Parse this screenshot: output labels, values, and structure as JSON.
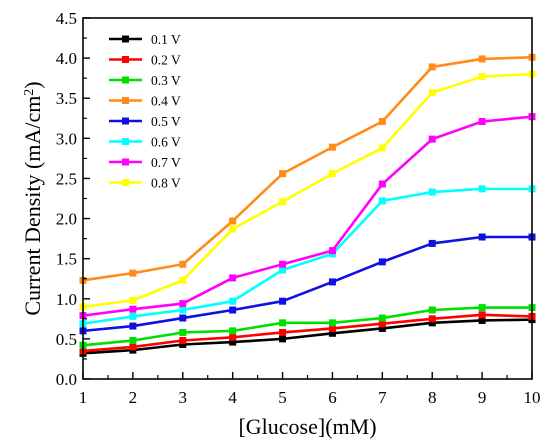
{
  "chart_data": {
    "type": "line",
    "title": "",
    "xlabel": "[Glucose](mM)",
    "ylabel_main": "Current Density (mA/cm",
    "ylabel_sup": "2",
    "ylabel_close": ")",
    "xlim": [
      1,
      10
    ],
    "ylim": [
      0.0,
      4.5
    ],
    "x_ticks": [
      "1",
      "2",
      "3",
      "4",
      "5",
      "6",
      "7",
      "8",
      "9",
      "10"
    ],
    "y_ticks": [
      "0.0",
      "0.5",
      "1.0",
      "1.5",
      "2.0",
      "2.5",
      "3.0",
      "3.5",
      "4.0",
      "4.5"
    ],
    "grid": false,
    "legend_position": "top-left",
    "x": [
      1,
      2,
      3,
      4,
      5,
      6,
      7,
      8,
      9,
      10
    ],
    "series": [
      {
        "name": "0.1 V",
        "color": "#000000",
        "values": [
          0.32,
          0.36,
          0.43,
          0.46,
          0.5,
          0.57,
          0.63,
          0.7,
          0.73,
          0.74
        ]
      },
      {
        "name": "0.2 V",
        "color": "#ff0000",
        "values": [
          0.35,
          0.4,
          0.48,
          0.52,
          0.58,
          0.63,
          0.69,
          0.75,
          0.8,
          0.78
        ]
      },
      {
        "name": "0.3 V",
        "color": "#00e000",
        "values": [
          0.42,
          0.48,
          0.58,
          0.6,
          0.7,
          0.7,
          0.76,
          0.86,
          0.89,
          0.89
        ]
      },
      {
        "name": "0.4 V",
        "color": "#ff8c1a",
        "values": [
          1.23,
          1.32,
          1.43,
          1.97,
          2.56,
          2.89,
          3.21,
          3.89,
          3.99,
          4.01
        ]
      },
      {
        "name": "0.5 V",
        "color": "#1010e0",
        "values": [
          0.6,
          0.66,
          0.76,
          0.86,
          0.97,
          1.21,
          1.46,
          1.69,
          1.77,
          1.77
        ]
      },
      {
        "name": "0.6 V",
        "color": "#00ffff",
        "values": [
          0.69,
          0.78,
          0.86,
          0.97,
          1.36,
          1.56,
          2.22,
          2.33,
          2.37,
          2.37
        ]
      },
      {
        "name": "0.7 V",
        "color": "#ff00ff",
        "values": [
          0.79,
          0.87,
          0.94,
          1.26,
          1.43,
          1.6,
          2.43,
          2.99,
          3.21,
          3.27
        ]
      },
      {
        "name": "0.8 V",
        "color": "#ffff00",
        "values": [
          0.9,
          0.98,
          1.23,
          1.87,
          2.21,
          2.56,
          2.88,
          3.57,
          3.77,
          3.8
        ]
      }
    ]
  }
}
